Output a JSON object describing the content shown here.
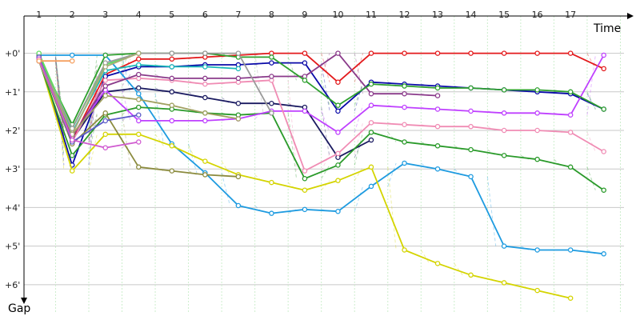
{
  "chart_data": {
    "type": "line",
    "x_axis_label": "Time",
    "y_axis_label": "Gap",
    "x_ticks": [
      "1",
      "2",
      "3",
      "4",
      "5",
      "6",
      "7",
      "8",
      "9",
      "10",
      "11",
      "12",
      "13",
      "14",
      "15",
      "16",
      "17"
    ],
    "y_ticks": [
      {
        "value": 0,
        "label": "+0'"
      },
      {
        "value": 1,
        "label": "+1'"
      },
      {
        "value": 2,
        "label": "+2'"
      },
      {
        "value": 3,
        "label": "+3'"
      },
      {
        "value": 4,
        "label": "+4'"
      },
      {
        "value": 5,
        "label": "+5'"
      },
      {
        "value": 6,
        "label": "+6'"
      }
    ],
    "x_range": [
      0.55,
      18.85
    ],
    "y_range": [
      -0.8,
      6.75
    ],
    "grid": true,
    "series": [
      {
        "color": "#e31a1c",
        "points": [
          [
            1,
            0.15
          ],
          [
            2,
            2.25
          ],
          [
            3,
            0.55
          ],
          [
            4,
            0.15
          ],
          [
            5,
            0.15
          ],
          [
            6,
            0.1
          ],
          [
            7,
            0.05
          ],
          [
            8,
            0
          ],
          [
            9,
            0
          ],
          [
            10,
            0.75
          ],
          [
            11,
            0
          ],
          [
            12,
            0
          ],
          [
            13,
            0
          ],
          [
            14,
            0
          ],
          [
            15,
            0
          ],
          [
            16,
            0
          ],
          [
            17,
            0
          ],
          [
            18,
            0.4
          ]
        ]
      },
      {
        "color": "#0a0aa8",
        "points": [
          [
            1,
            0.1
          ],
          [
            2,
            2.9
          ],
          [
            3,
            0.6
          ],
          [
            4,
            0.35
          ],
          [
            5,
            0.35
          ],
          [
            6,
            0.3
          ],
          [
            7,
            0.3
          ],
          [
            8,
            0.25
          ],
          [
            9,
            0.25
          ],
          [
            10,
            1.5
          ],
          [
            11,
            0.75
          ],
          [
            12,
            0.8
          ],
          [
            13,
            0.85
          ],
          [
            14,
            0.9
          ],
          [
            15,
            0.95
          ],
          [
            16,
            1
          ],
          [
            17,
            1.05
          ],
          [
            18,
            1.45
          ]
        ]
      },
      {
        "color": "#1a1a60",
        "points": [
          [
            1,
            0.2
          ],
          [
            2,
            2.25
          ],
          [
            3,
            1
          ],
          [
            4,
            0.9
          ],
          [
            5,
            1
          ],
          [
            6,
            1.15
          ],
          [
            7,
            1.3
          ],
          [
            8,
            1.3
          ],
          [
            9,
            1.4
          ],
          [
            10,
            2.7
          ],
          [
            11,
            2.25
          ]
        ]
      },
      {
        "color": "#1e9be0",
        "points": [
          [
            1,
            0.05
          ],
          [
            2,
            0.05
          ],
          [
            3,
            0.05
          ],
          [
            4,
            1.05
          ],
          [
            5,
            2.35
          ],
          [
            6,
            3.1
          ],
          [
            7,
            3.95
          ],
          [
            8,
            4.15
          ],
          [
            9,
            4.05
          ],
          [
            10,
            4.1
          ],
          [
            11,
            3.45
          ],
          [
            12,
            2.85
          ],
          [
            13,
            3
          ],
          [
            14,
            3.2
          ],
          [
            15,
            5
          ],
          [
            16,
            5.1
          ],
          [
            17,
            5.1
          ],
          [
            18,
            5.2
          ]
        ]
      },
      {
        "color": "#d4d400",
        "points": [
          [
            1,
            0.15
          ],
          [
            2,
            3.05
          ],
          [
            3,
            2.1
          ],
          [
            4,
            2.1
          ],
          [
            5,
            2.4
          ],
          [
            6,
            2.8
          ],
          [
            7,
            3.15
          ],
          [
            8,
            3.35
          ],
          [
            9,
            3.55
          ],
          [
            10,
            3.3
          ],
          [
            11,
            2.95
          ],
          [
            12,
            5.1
          ],
          [
            13,
            5.45
          ],
          [
            14,
            5.75
          ],
          [
            15,
            5.95
          ],
          [
            16,
            6.15
          ],
          [
            17,
            6.35
          ]
        ]
      },
      {
        "color": "#2a9a2a",
        "points": [
          [
            1,
            0.2
          ],
          [
            2,
            2.65
          ],
          [
            3,
            1.6
          ],
          [
            4,
            1.4
          ],
          [
            5,
            1.45
          ],
          [
            6,
            1.55
          ],
          [
            7,
            1.6
          ],
          [
            8,
            1.55
          ],
          [
            9,
            3.25
          ],
          [
            10,
            2.9
          ],
          [
            11,
            2.05
          ],
          [
            12,
            2.3
          ],
          [
            13,
            2.4
          ],
          [
            14,
            2.5
          ],
          [
            15,
            2.65
          ],
          [
            16,
            2.75
          ],
          [
            17,
            2.95
          ],
          [
            18,
            3.55
          ]
        ]
      },
      {
        "color": "#bf40ff",
        "points": [
          [
            1,
            0.15
          ],
          [
            2,
            2.15
          ],
          [
            3,
            0.95
          ],
          [
            4,
            1.75
          ],
          [
            5,
            1.75
          ],
          [
            6,
            1.75
          ],
          [
            7,
            1.7
          ],
          [
            8,
            1.5
          ],
          [
            9,
            1.5
          ],
          [
            10,
            2.05
          ],
          [
            11,
            1.35
          ],
          [
            12,
            1.4
          ],
          [
            13,
            1.45
          ],
          [
            14,
            1.5
          ],
          [
            15,
            1.55
          ],
          [
            16,
            1.55
          ],
          [
            17,
            1.6
          ],
          [
            18,
            0.05
          ]
        ]
      },
      {
        "color": "#f08cb4",
        "points": [
          [
            1,
            0.2
          ],
          [
            2,
            2.3
          ],
          [
            3,
            0.7
          ],
          [
            4,
            0.65
          ],
          [
            5,
            0.7
          ],
          [
            6,
            0.8
          ],
          [
            7,
            0.75
          ],
          [
            8,
            0.7
          ],
          [
            9,
            3.05
          ],
          [
            10,
            2.6
          ],
          [
            11,
            1.8
          ],
          [
            12,
            1.85
          ],
          [
            13,
            1.9
          ],
          [
            14,
            1.9
          ],
          [
            15,
            2
          ],
          [
            16,
            2
          ],
          [
            17,
            2.05
          ],
          [
            18,
            2.55
          ]
        ]
      },
      {
        "color": "#8a3a8a",
        "points": [
          [
            1,
            0.05
          ],
          [
            2,
            2.15
          ],
          [
            3,
            0.85
          ],
          [
            4,
            0.55
          ],
          [
            5,
            0.65
          ],
          [
            6,
            0.65
          ],
          [
            7,
            0.65
          ],
          [
            8,
            0.6
          ],
          [
            9,
            0.6
          ],
          [
            10,
            0
          ],
          [
            11,
            1.05
          ],
          [
            12,
            1.05
          ],
          [
            13,
            1.1
          ]
        ]
      },
      {
        "color": "#2ea02e",
        "points": [
          [
            1,
            0.1
          ],
          [
            2,
            1.85
          ],
          [
            3,
            0.05
          ],
          [
            4,
            0
          ],
          [
            5,
            0
          ],
          [
            6,
            0
          ],
          [
            7,
            0.1
          ],
          [
            8,
            0.1
          ],
          [
            9,
            0.7
          ],
          [
            10,
            1.35
          ],
          [
            11,
            0.8
          ],
          [
            12,
            0.85
          ],
          [
            13,
            0.9
          ],
          [
            14,
            0.9
          ],
          [
            15,
            0.95
          ],
          [
            16,
            0.95
          ],
          [
            17,
            1
          ],
          [
            18,
            1.45
          ]
        ]
      },
      {
        "color": "#60e060",
        "points": [
          [
            1,
            0
          ],
          [
            2,
            1.95
          ],
          [
            3,
            0.3
          ],
          [
            4,
            0
          ]
        ]
      },
      {
        "color": "#1ab8b8",
        "points": [
          [
            1,
            0.1
          ],
          [
            2,
            2.05
          ],
          [
            3,
            0.45
          ],
          [
            4,
            0.3
          ],
          [
            5,
            0.35
          ],
          [
            6,
            0.35
          ],
          [
            7,
            0.4
          ]
        ]
      },
      {
        "color": "#8b8b3e",
        "points": [
          [
            1,
            0.15
          ],
          [
            2,
            2.35
          ],
          [
            3,
            1.55
          ],
          [
            4,
            2.95
          ],
          [
            5,
            3.05
          ],
          [
            6,
            3.15
          ],
          [
            7,
            3.2
          ]
        ]
      },
      {
        "color": "#a0a060",
        "points": [
          [
            1,
            0.1
          ],
          [
            2,
            2.1
          ],
          [
            3,
            1.1
          ],
          [
            4,
            1.2
          ],
          [
            5,
            1.35
          ],
          [
            6,
            1.55
          ],
          [
            7,
            1.7
          ]
        ]
      },
      {
        "color": "#9a9a9a",
        "points": [
          [
            1,
            0.15
          ],
          [
            2,
            1.95
          ],
          [
            3,
            0.25
          ],
          [
            4,
            0
          ],
          [
            5,
            0
          ],
          [
            6,
            0
          ],
          [
            7,
            0
          ],
          [
            8,
            1.55
          ]
        ]
      },
      {
        "color": "#aaaa77",
        "points": [
          [
            1,
            0.1
          ],
          [
            2,
            2.1
          ],
          [
            3,
            0.35
          ],
          [
            4,
            0
          ]
        ]
      },
      {
        "color": "#5a5ac8",
        "points": [
          [
            1,
            0.1
          ],
          [
            2,
            2.3
          ],
          [
            3,
            1.75
          ],
          [
            4,
            1.6
          ]
        ]
      },
      {
        "color": "#d05ad0",
        "points": [
          [
            1,
            0.15
          ],
          [
            2,
            2.25
          ],
          [
            3,
            2.45
          ],
          [
            4,
            2.3
          ]
        ]
      },
      {
        "color": "#f5a060",
        "points": [
          [
            1,
            0.2
          ],
          [
            2,
            0.2
          ]
        ]
      }
    ]
  }
}
